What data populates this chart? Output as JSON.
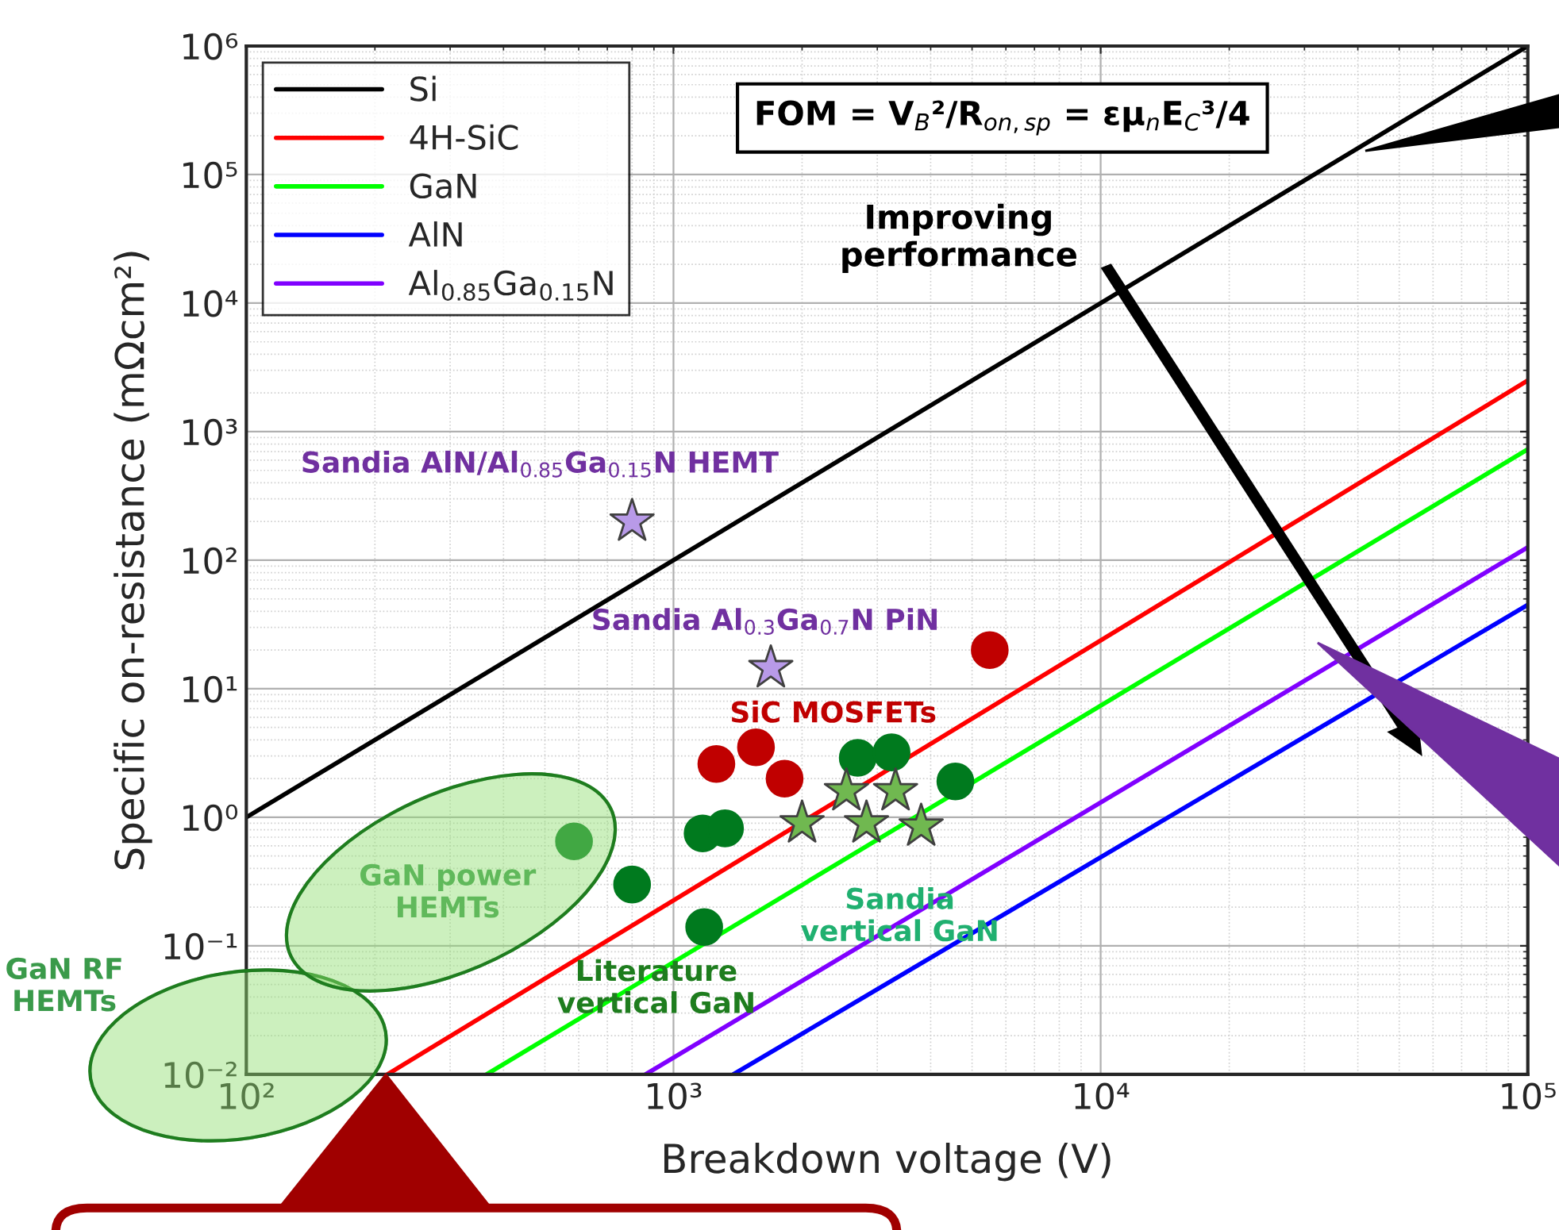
{
  "chart_data": {
    "type": "line",
    "xlabel": "Breakdown voltage (V)",
    "ylabel": "Specific on-resistance (mΩcm²)",
    "log": "xy",
    "xlim": [
      100,
      100000
    ],
    "ylim": [
      0.01,
      1000000
    ],
    "xticks": [
      {
        "value": 100,
        "label": "10²"
      },
      {
        "value": 1000,
        "label": "10³"
      },
      {
        "value": 10000,
        "label": "10⁴"
      },
      {
        "value": 100000,
        "label": "10⁵"
      }
    ],
    "yticks": [
      {
        "value": 0.01,
        "label": "10⁻²"
      },
      {
        "value": 0.1,
        "label": "10⁻¹"
      },
      {
        "value": 1,
        "label": "10⁰"
      },
      {
        "value": 10,
        "label": "10¹"
      },
      {
        "value": 100,
        "label": "10²"
      },
      {
        "value": 1000,
        "label": "10³"
      },
      {
        "value": 10000,
        "label": "10⁴"
      },
      {
        "value": 100000,
        "label": "10⁵"
      },
      {
        "value": 1000000,
        "label": "10⁶"
      }
    ],
    "grid": true,
    "legend": "top left",
    "line_style": "solid",
    "series": [
      {
        "name": "Si",
        "color": "#000000",
        "x": [
          100,
          100000
        ],
        "values": [
          1,
          1000000
        ]
      },
      {
        "name": "4H-SiC",
        "color": "#ff0000",
        "x": [
          214,
          100000
        ],
        "values": [
          0.01,
          2500
        ]
      },
      {
        "name": "GaN",
        "color": "#00ff00",
        "x": [
          365,
          100000
        ],
        "values": [
          0.01,
          730
        ]
      },
      {
        "name": "AlN",
        "color": "#0000ff",
        "x": [
          1380,
          100000
        ],
        "values": [
          0.01,
          45
        ]
      },
      {
        "name": "Al$_{0.85}$Ga$_{0.15}$N",
        "color": "#8000ff",
        "x": [
          860,
          100000
        ],
        "values": [
          0.01,
          126
        ]
      },
      {
        "type": "scatter",
        "marker": "circle",
        "color": "#c00000",
        "x": [
          1260,
          1560,
          1820,
          5500
        ],
        "values": [
          2.6,
          3.5,
          2.0,
          20
        ]
      },
      {
        "type": "scatter",
        "marker": "circle",
        "color": "#007a1e",
        "x": [
          585,
          800,
          1170,
          1320,
          1180,
          2700,
          3240,
          4570
        ],
        "values": [
          0.65,
          0.3,
          0.75,
          0.82,
          0.14,
          2.9,
          3.2,
          1.9
        ]
      },
      {
        "type": "scatter",
        "marker": "star",
        "color": "#70b850",
        "x": [
          2000,
          2540,
          3310,
          2830,
          3800
        ],
        "values": [
          0.9,
          1.6,
          1.6,
          0.9,
          0.85
        ]
      },
      {
        "type": "scatter",
        "marker": "star",
        "color": "#b89ae8",
        "x": [
          800,
          1690
        ],
        "values": [
          200,
          14.5
        ]
      }
    ],
    "annotations": [
      "FOM = V$_{B}$²/R$_{on,sp}$ = εμ$_{n}$E$_{C}$³/4",
      "Improving\nperformance",
      "Sandia AlN/Al$_{0.85}$Ga$_{0.15}$N HEMT",
      "Sandia Al$_{0.3}$Ga$_{0.7}$N PiN",
      "SiC MOSFETs",
      "Literature\nvertical GaN",
      "Sandia\nvertical GaN",
      "GaN power\nHEMTs",
      "GaN RF\nHEMTs"
    ]
  }
}
